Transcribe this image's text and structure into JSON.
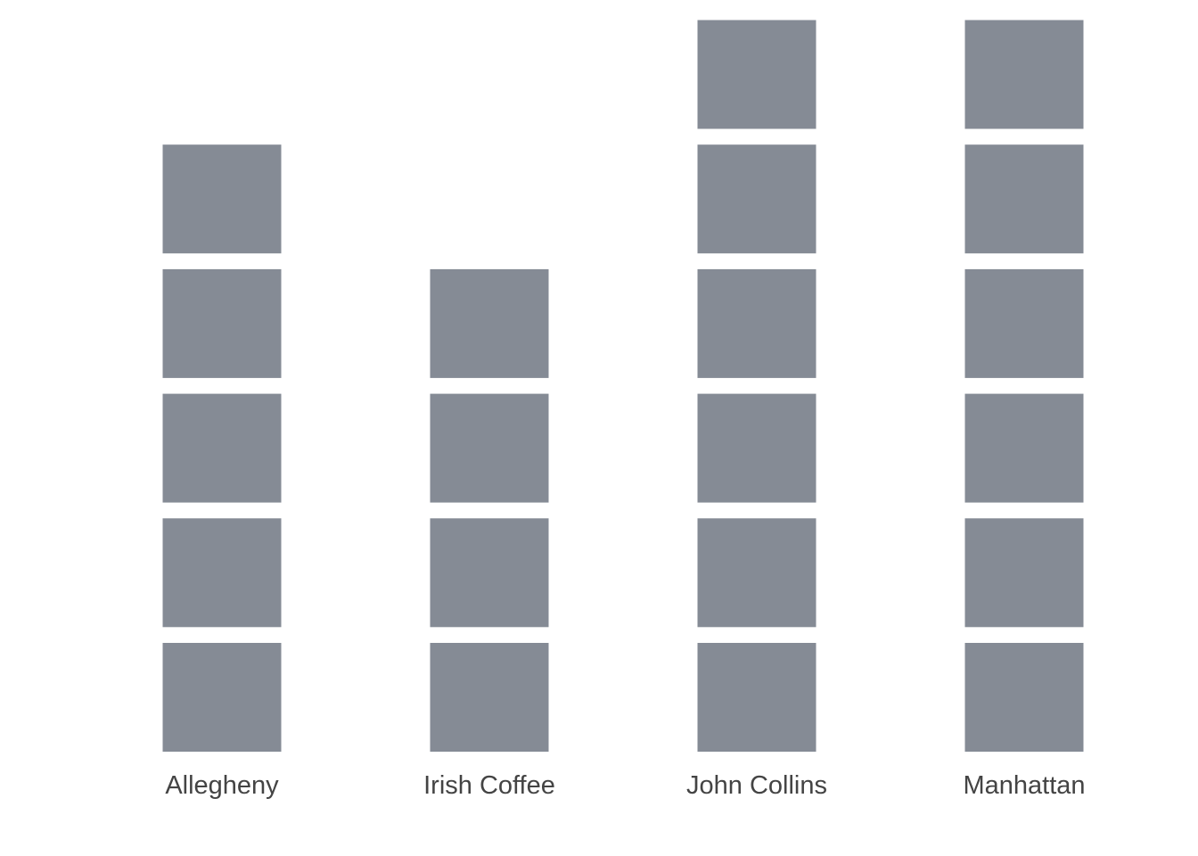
{
  "chart_data": {
    "type": "bar",
    "subtype": "stacked-unit-pictogram",
    "categories": [
      "Allegheny",
      "Irish Coffee",
      "John Collins",
      "Manhattan"
    ],
    "values": [
      5,
      4,
      6,
      6
    ],
    "title": "",
    "xlabel": "",
    "ylabel": "",
    "ylim": [
      0,
      6
    ],
    "grid": false,
    "legend": "none",
    "colors": {
      "unit": "#858b95",
      "label": "#444444",
      "background": "#ffffff"
    }
  }
}
